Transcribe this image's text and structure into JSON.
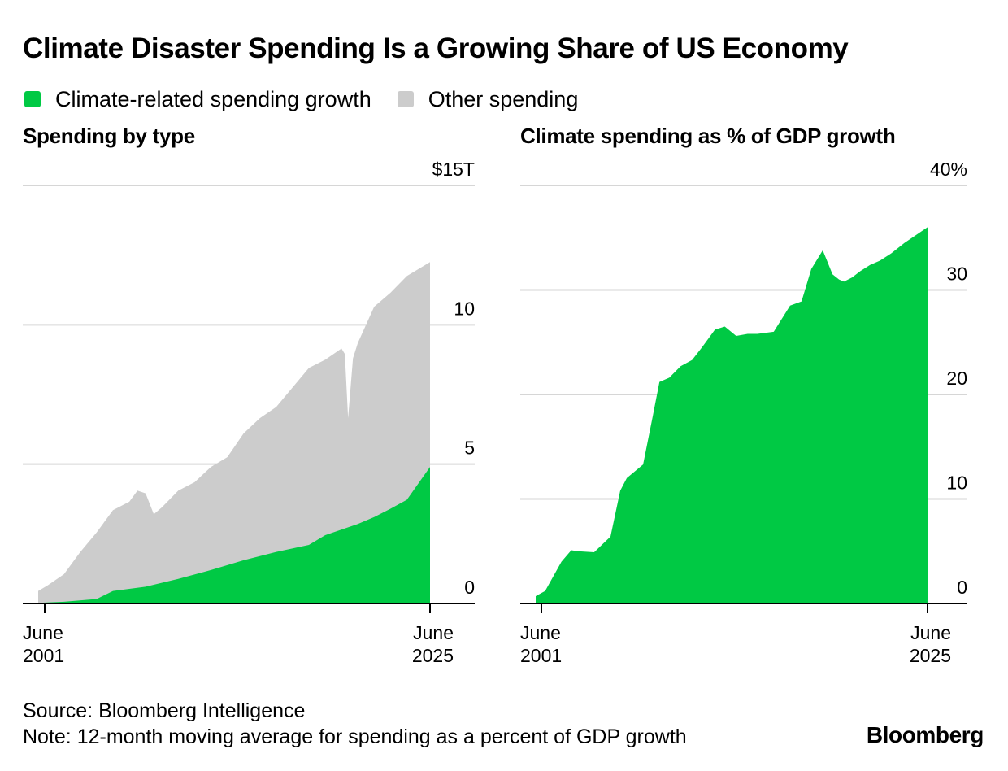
{
  "title": "Climate Disaster Spending Is a Growing Share of US Economy",
  "legend": [
    {
      "label": "Climate-related spending growth",
      "color": "#00c944"
    },
    {
      "label": "Other spending",
      "color": "#cccccc"
    }
  ],
  "colors": {
    "climate": "#00c944",
    "other": "#cccccc",
    "grid": "#d6d6d6",
    "axis": "#000000"
  },
  "chart_data": [
    {
      "type": "area",
      "title": "Spending by type",
      "x_tick_labels": [
        [
          "June",
          "2001"
        ],
        [
          "June",
          "2025"
        ]
      ],
      "x_range": [
        2001.42,
        2025.42
      ],
      "y_tick_labels": [
        "$15T",
        "10",
        "5",
        "0"
      ],
      "y_ticks": [
        15,
        10,
        5,
        0
      ],
      "ylim": [
        0,
        15
      ],
      "grid": true,
      "series": [
        {
          "name": "Climate-related spending growth",
          "x": [
            2001.42,
            2003,
            2005,
            2006,
            2008,
            2010,
            2012,
            2014,
            2016,
            2018,
            2019,
            2021,
            2022,
            2023,
            2024,
            2025.42
          ],
          "values": [
            0.02,
            0.06,
            0.16,
            0.45,
            0.6,
            0.88,
            1.2,
            1.55,
            1.85,
            2.1,
            2.45,
            2.85,
            3.1,
            3.4,
            3.72,
            4.9
          ]
        },
        {
          "name": "Other spending",
          "note": "total (stacked) spending",
          "x": [
            2001.42,
            2002,
            2003,
            2004,
            2005,
            2006,
            2007,
            2007.5,
            2008,
            2008.5,
            2009,
            2010,
            2011,
            2012,
            2013,
            2014,
            2015,
            2016,
            2017,
            2018,
            2019,
            2020,
            2020.2,
            2020.4,
            2020.7,
            2021,
            2022,
            2023,
            2024,
            2025.42
          ],
          "values": [
            0.45,
            0.65,
            1.05,
            1.85,
            2.55,
            3.35,
            3.65,
            4.05,
            3.95,
            3.2,
            3.45,
            4.05,
            4.35,
            4.9,
            5.25,
            6.1,
            6.65,
            7.05,
            7.75,
            8.45,
            8.75,
            9.15,
            8.95,
            6.65,
            8.8,
            9.35,
            10.65,
            11.15,
            11.75,
            12.25
          ]
        }
      ]
    },
    {
      "type": "area",
      "title": "Climate spending as % of GDP growth",
      "x_tick_labels": [
        [
          "June",
          "2001"
        ],
        [
          "June",
          "2025"
        ]
      ],
      "x_range": [
        2001.42,
        2025.42
      ],
      "y_tick_labels": [
        "40%",
        "30",
        "20",
        "10",
        "0"
      ],
      "y_ticks": [
        40,
        30,
        20,
        10,
        0
      ],
      "ylim": [
        0,
        40
      ],
      "grid": true,
      "series": [
        {
          "name": "Climate-related spending growth",
          "x": [
            2001.42,
            2002,
            2003,
            2003.6,
            2004,
            2005,
            2006,
            2006.6,
            2007,
            2008,
            2008.6,
            2009,
            2009.6,
            2010.3,
            2011,
            2011.6,
            2012.4,
            2013,
            2013.7,
            2014.4,
            2015,
            2016,
            2017,
            2017.7,
            2018.3,
            2019,
            2019.6,
            2020,
            2020.3,
            2020.8,
            2021.3,
            2021.9,
            2022.5,
            2023.2,
            2024,
            2025.42
          ],
          "values": [
            0.7,
            1.2,
            4.0,
            5.1,
            5.0,
            4.9,
            6.4,
            10.8,
            12.0,
            13.3,
            18.0,
            21.2,
            21.6,
            22.7,
            23.3,
            24.5,
            26.2,
            26.5,
            25.6,
            25.8,
            25.8,
            26.0,
            28.5,
            28.9,
            32.0,
            33.8,
            31.5,
            31.0,
            30.8,
            31.2,
            31.8,
            32.4,
            32.8,
            33.5,
            34.5,
            36.0
          ]
        }
      ]
    }
  ],
  "source": "Source: Bloomberg Intelligence",
  "note": "Note: 12-month moving average for spending as a percent of GDP growth",
  "brand": "Bloomberg"
}
